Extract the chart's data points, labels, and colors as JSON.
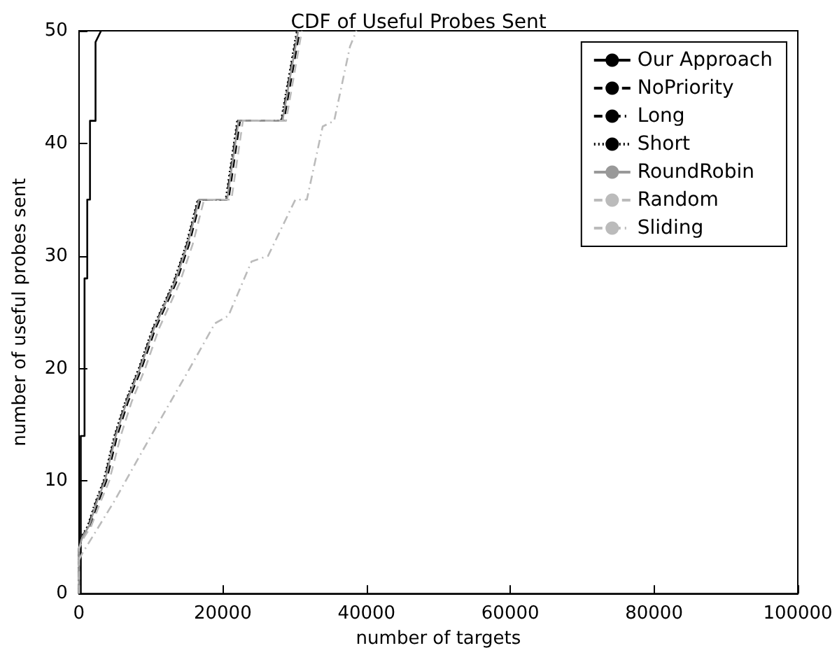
{
  "chart_data": {
    "type": "line",
    "title": "CDF of Useful Probes Sent",
    "xlabel": "number of targets",
    "ylabel": "number of useful probes sent",
    "xlim": [
      0,
      100000
    ],
    "ylim": [
      0,
      50
    ],
    "xticks": [
      0,
      20000,
      40000,
      60000,
      80000,
      100000
    ],
    "yticks": [
      0,
      10,
      20,
      30,
      40,
      50
    ],
    "grid": false,
    "legend": "top right",
    "marker": "none",
    "series": [
      {
        "name": "Our Approach",
        "color": "#000000",
        "line_style": "solid",
        "x": [
          0,
          250,
          250,
          770,
          770,
          1150,
          1150,
          1530,
          1530,
          2300,
          2300,
          3070
        ],
        "values": [
          0,
          0,
          14,
          14,
          28,
          28,
          35,
          35,
          42,
          42,
          49,
          50
        ]
      },
      {
        "name": "NoPriority",
        "color": "#000000",
        "line_style": "dashed",
        "x": [
          0,
          0,
          500,
          1500,
          2600,
          3800,
          5300,
          6800,
          8700,
          10600,
          13500,
          15300,
          16900,
          20800,
          22400,
          28500,
          30700
        ],
        "values": [
          0,
          4,
          5,
          6,
          8,
          10,
          14,
          17,
          20,
          23.5,
          27.6,
          31,
          35,
          35,
          42,
          42,
          50
        ]
      },
      {
        "name": "Long",
        "color": "#000000",
        "line_style": "dashdot",
        "x": [
          0,
          0,
          400,
          1300,
          2300,
          3500,
          5000,
          6500,
          8400,
          10300,
          13200,
          15000,
          16600,
          20500,
          22100,
          28200,
          30400
        ],
        "values": [
          0,
          4,
          5,
          6,
          8,
          10,
          14,
          17,
          20,
          23.5,
          27.6,
          31,
          35,
          35,
          42,
          42,
          50
        ]
      },
      {
        "name": "Short",
        "color": "#000000",
        "line_style": "dotted",
        "x": [
          0,
          0,
          300,
          1200,
          2200,
          3400,
          4900,
          6400,
          8300,
          10200,
          13100,
          14900,
          16500,
          20400,
          22000,
          28100,
          30300
        ],
        "values": [
          0,
          4,
          5,
          6,
          8,
          10,
          14,
          17,
          20,
          23.5,
          27.6,
          31,
          35,
          35,
          42,
          42,
          50
        ]
      },
      {
        "name": "RoundRobin",
        "color": "#999999",
        "line_style": "solid",
        "x": [
          0,
          0,
          450,
          1400,
          2400,
          3600,
          5100,
          6600,
          8500,
          10400,
          13300,
          15100,
          16700,
          20600,
          22200,
          28300,
          30500
        ],
        "values": [
          0,
          4,
          5,
          6,
          8,
          10,
          14,
          17,
          20,
          23.5,
          27.6,
          31,
          35,
          35,
          42,
          42,
          50
        ]
      },
      {
        "name": "Random",
        "color": "#bbbbbb",
        "line_style": "dashed",
        "x": [
          0,
          0,
          700,
          1700,
          2900,
          4200,
          5800,
          7300,
          9200,
          11100,
          14000,
          15800,
          17400,
          21200,
          22800,
          28800,
          31000
        ],
        "values": [
          0,
          4,
          5,
          6,
          8,
          10,
          14,
          17,
          20,
          23.5,
          27.6,
          31,
          35,
          35,
          42,
          42,
          50
        ]
      },
      {
        "name": "Sliding",
        "color": "#bbbbbb",
        "line_style": "dashdot",
        "x": [
          0,
          400,
          4900,
          10000,
          15400,
          18900,
          20800,
          24000,
          26300,
          30100,
          31700,
          33900,
          35500,
          37700,
          38600
        ],
        "values": [
          3,
          3.5,
          8.2,
          14,
          20,
          24,
          24.7,
          29.5,
          30,
          35,
          35,
          41.5,
          42,
          48.6,
          50
        ]
      }
    ]
  }
}
